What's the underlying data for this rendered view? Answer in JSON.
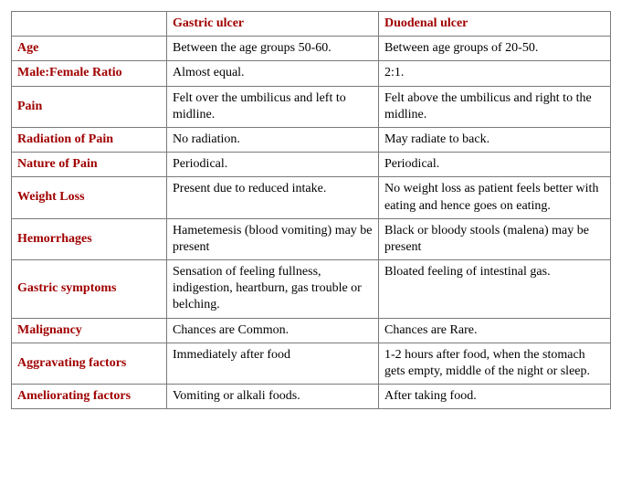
{
  "table": {
    "header_color": "#a00000",
    "text_color": "#000000",
    "border_color": "#7a7a7a",
    "background_color": "#ffffff",
    "font_family": "Times New Roman",
    "font_size_pt": 11,
    "columns": [
      "",
      "Gastric ulcer",
      "Duodenal ulcer"
    ],
    "rows": [
      {
        "label": "Age",
        "gastric": "Between the age groups 50-60.",
        "duodenal": "Between age groups of 20-50."
      },
      {
        "label": "Male:Female Ratio",
        "gastric": "Almost equal.",
        "duodenal": "2:1."
      },
      {
        "label": "Pain",
        "gastric": "Felt over the umbilicus and left to midline.",
        "duodenal": "Felt above the umbilicus and right to the midline."
      },
      {
        "label": "Radiation of Pain",
        "gastric": "No radiation.",
        "duodenal": "May radiate to back."
      },
      {
        "label": "Nature of Pain",
        "gastric": "Periodical.",
        "duodenal": "Periodical."
      },
      {
        "label": "Weight Loss",
        "gastric": "Present due to reduced intake.",
        "duodenal": "No weight loss as patient feels better with eating and hence goes on eating."
      },
      {
        "label": "Hemorrhages",
        "gastric": "Hametemesis (blood vomiting) may be present",
        "duodenal": "Black or bloody stools (malena) may be present"
      },
      {
        "label": "Gastric symptoms",
        "gastric": "Sensation of feeling fullness, indigestion, heartburn, gas trouble or belching.",
        "duodenal": "Bloated feeling of intestinal gas."
      },
      {
        "label": "Malignancy",
        "gastric": "Chances are Common.",
        "duodenal": "Chances are Rare."
      },
      {
        "label": "Aggravating factors",
        "gastric": "Immediately after food",
        "duodenal": "1-2 hours after food, when the stomach gets empty, middle of the night or sleep."
      },
      {
        "label": "Ameliorating factors",
        "gastric": "Vomiting or alkali foods.",
        "duodenal": "After taking food."
      }
    ]
  }
}
